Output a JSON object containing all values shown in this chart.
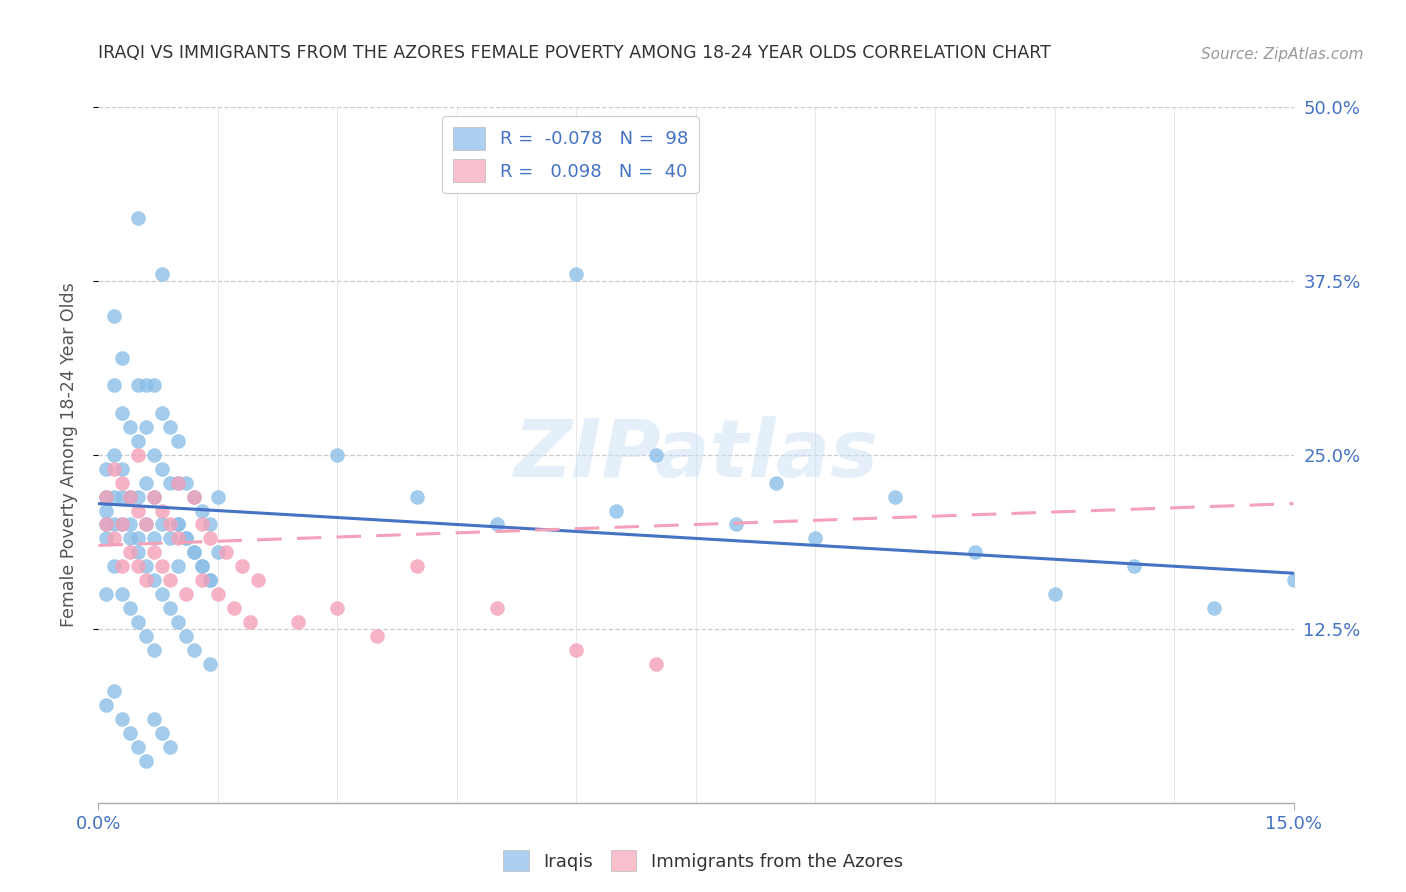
{
  "title": "IRAQI VS IMMIGRANTS FROM THE AZORES FEMALE POVERTY AMONG 18-24 YEAR OLDS CORRELATION CHART",
  "source": "Source: ZipAtlas.com",
  "xlim": [
    0.0,
    0.15
  ],
  "ylim": [
    0.0,
    0.5
  ],
  "watermark_text": "ZIPatlas",
  "iraqis_color": "#8bbfe8",
  "azores_color": "#f4a0b8",
  "iraqis_line_color": "#4472c4",
  "azores_line_color": "#f4a0b8",
  "legend_iraqi_color": "#aed0f0",
  "legend_azores_color": "#f8c0cc",
  "iraqis_label": "R =  -0.078   N =  98",
  "azores_label": "R =   0.098   N =  40",
  "bottom_legend_iraqi": "Iraqis",
  "bottom_legend_azores": "Immigrants from the Azores",
  "ylabel": "Female Poverty Among 18-24 Year Olds",
  "right_ytick_labels": [
    "12.5%",
    "25.0%",
    "37.5%",
    "50.0%"
  ],
  "right_ytick_vals": [
    0.125,
    0.25,
    0.375,
    0.5
  ],
  "iraqi_line_x": [
    0.0,
    0.15
  ],
  "iraqi_line_y": [
    0.215,
    0.165
  ],
  "azores_line_x": [
    0.0,
    0.15
  ],
  "azores_line_y": [
    0.185,
    0.215
  ],
  "iraqis_x": [
    0.001,
    0.001,
    0.001,
    0.001,
    0.001,
    0.002,
    0.002,
    0.002,
    0.002,
    0.003,
    0.003,
    0.003,
    0.003,
    0.004,
    0.004,
    0.004,
    0.005,
    0.005,
    0.005,
    0.005,
    0.005,
    0.006,
    0.006,
    0.006,
    0.006,
    0.007,
    0.007,
    0.007,
    0.007,
    0.008,
    0.008,
    0.008,
    0.008,
    0.009,
    0.009,
    0.009,
    0.01,
    0.01,
    0.01,
    0.01,
    0.011,
    0.011,
    0.012,
    0.012,
    0.013,
    0.013,
    0.014,
    0.014,
    0.015,
    0.015,
    0.001,
    0.002,
    0.002,
    0.003,
    0.003,
    0.004,
    0.004,
    0.005,
    0.005,
    0.006,
    0.006,
    0.007,
    0.007,
    0.008,
    0.009,
    0.01,
    0.01,
    0.011,
    0.011,
    0.012,
    0.012,
    0.013,
    0.014,
    0.014,
    0.03,
    0.04,
    0.05,
    0.06,
    0.065,
    0.07,
    0.08,
    0.085,
    0.09,
    0.1,
    0.11,
    0.12,
    0.13,
    0.14,
    0.15,
    0.001,
    0.002,
    0.003,
    0.004,
    0.005,
    0.006,
    0.007,
    0.008,
    0.009
  ],
  "iraqis_y": [
    0.22,
    0.2,
    0.19,
    0.24,
    0.21,
    0.3,
    0.22,
    0.2,
    0.35,
    0.28,
    0.24,
    0.22,
    0.32,
    0.27,
    0.22,
    0.2,
    0.42,
    0.3,
    0.26,
    0.22,
    0.19,
    0.3,
    0.27,
    0.23,
    0.2,
    0.3,
    0.25,
    0.22,
    0.19,
    0.38,
    0.28,
    0.24,
    0.2,
    0.27,
    0.23,
    0.19,
    0.26,
    0.23,
    0.2,
    0.17,
    0.23,
    0.19,
    0.22,
    0.18,
    0.21,
    0.17,
    0.2,
    0.16,
    0.22,
    0.18,
    0.15,
    0.25,
    0.17,
    0.2,
    0.15,
    0.19,
    0.14,
    0.18,
    0.13,
    0.17,
    0.12,
    0.16,
    0.11,
    0.15,
    0.14,
    0.2,
    0.13,
    0.19,
    0.12,
    0.18,
    0.11,
    0.17,
    0.16,
    0.1,
    0.25,
    0.22,
    0.2,
    0.38,
    0.21,
    0.25,
    0.2,
    0.23,
    0.19,
    0.22,
    0.18,
    0.15,
    0.17,
    0.14,
    0.16,
    0.07,
    0.08,
    0.06,
    0.05,
    0.04,
    0.03,
    0.06,
    0.05,
    0.04
  ],
  "azores_x": [
    0.001,
    0.001,
    0.002,
    0.002,
    0.003,
    0.003,
    0.003,
    0.004,
    0.004,
    0.005,
    0.005,
    0.005,
    0.006,
    0.006,
    0.007,
    0.007,
    0.008,
    0.008,
    0.009,
    0.009,
    0.01,
    0.01,
    0.011,
    0.012,
    0.013,
    0.013,
    0.014,
    0.015,
    0.016,
    0.017,
    0.018,
    0.019,
    0.02,
    0.025,
    0.03,
    0.035,
    0.04,
    0.05,
    0.06,
    0.07
  ],
  "azores_y": [
    0.22,
    0.2,
    0.24,
    0.19,
    0.23,
    0.2,
    0.17,
    0.22,
    0.18,
    0.21,
    0.25,
    0.17,
    0.2,
    0.16,
    0.22,
    0.18,
    0.21,
    0.17,
    0.2,
    0.16,
    0.19,
    0.23,
    0.15,
    0.22,
    0.2,
    0.16,
    0.19,
    0.15,
    0.18,
    0.14,
    0.17,
    0.13,
    0.16,
    0.13,
    0.14,
    0.12,
    0.17,
    0.14,
    0.11,
    0.1
  ]
}
